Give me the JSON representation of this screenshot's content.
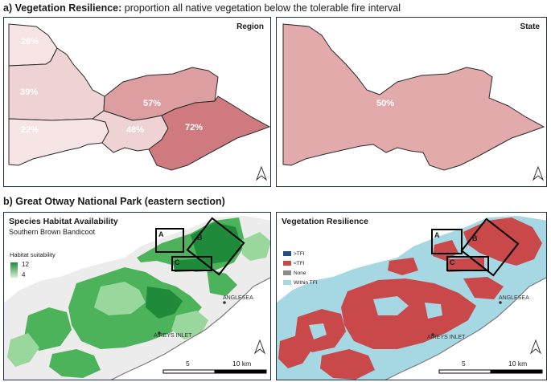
{
  "section_a": {
    "bold": "a) Vegetation Resilience:",
    "rest": " proportion  all native vegetation below the tolerable fire interval"
  },
  "section_b": {
    "title": "b) Great Otway National Park (eastern section)"
  },
  "region_panel": {
    "title": "Region",
    "values": [
      "26%",
      "39%",
      "22%",
      "57%",
      "48%",
      "72%"
    ],
    "colors": {
      "light": "#f7e4e5",
      "mid_light": "#efd2d4",
      "mid": "#dd9ea1",
      "dark": "#cf7a7e",
      "border": "#2a2a2a"
    }
  },
  "state_panel": {
    "title": "State",
    "value": "50%",
    "color": "#e2aaab"
  },
  "habitat_panel": {
    "title": "Species Habitat Availability",
    "subtitle": "Southern Brown Bandicoot",
    "legend_title": "Habitat suitability",
    "legend_max": "12",
    "legend_min": "4",
    "colors": {
      "dark": "#1f8a3a",
      "mid": "#4cb35a",
      "light": "#9ad79c",
      "background": "#ececec",
      "sea": "#ffffff"
    }
  },
  "resilience_panel": {
    "title": "Vegetation Resilience",
    "legend": [
      {
        "label": ">TFI",
        "color": "#1f4e8c"
      },
      {
        "label": "<TFI",
        "color": "#c9494b"
      },
      {
        "label": "None",
        "color": "#8c8c8c"
      },
      {
        "label": "Within TFI",
        "color": "#a6d8e4"
      }
    ]
  },
  "places": {
    "anglesea": "ANGLESEA",
    "aireys": "AIREYS INLET"
  },
  "boxes": [
    "A",
    "B",
    "C"
  ],
  "scale": {
    "mid": "5",
    "end": "10 km"
  }
}
